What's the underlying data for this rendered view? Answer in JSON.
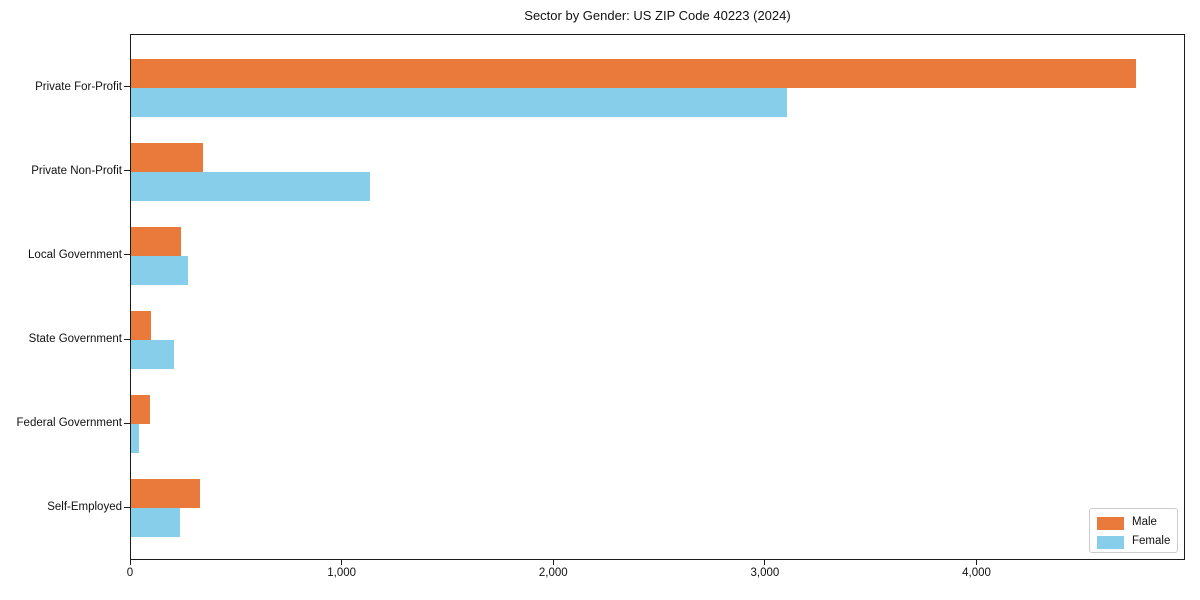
{
  "title": "Sector by Gender: US ZIP Code 40223 (2024)",
  "colors": {
    "male": "#ea7a3c",
    "female": "#87ceeb",
    "axis": "#1c1c1c",
    "legend_border": "#cccccc",
    "background": "#ffffff"
  },
  "legend": {
    "position": "lower right",
    "items": [
      {
        "label": "Male",
        "color": "#ea7a3c"
      },
      {
        "label": "Female",
        "color": "#87ceeb"
      }
    ]
  },
  "chart_data": {
    "type": "bar",
    "orientation": "horizontal",
    "title": "Sector by Gender: US ZIP Code 40223 (2024)",
    "categories": [
      "Private For-Profit",
      "Private Non-Profit",
      "Local Government",
      "State Government",
      "Federal Government",
      "Self-Employed"
    ],
    "series": [
      {
        "name": "Male",
        "color": "#ea7a3c",
        "values": [
          4750,
          340,
          235,
          95,
          90,
          325
        ]
      },
      {
        "name": "Female",
        "color": "#87ceeb",
        "values": [
          3100,
          1130,
          270,
          205,
          40,
          230
        ]
      }
    ],
    "xlabel": "",
    "ylabel": "",
    "xlim": [
      0,
      4985
    ],
    "xticks": [
      0,
      1000,
      2000,
      3000,
      4000
    ],
    "xtick_labels": [
      "0",
      "1,000",
      "2,000",
      "3,000",
      "4,000"
    ],
    "grid": false,
    "legend_position": "lower right"
  }
}
